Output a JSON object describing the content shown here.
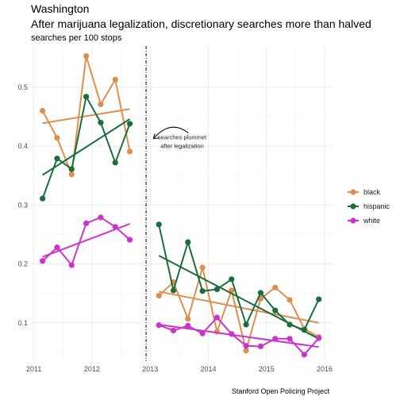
{
  "chart_data": {
    "type": "line",
    "title": "Washington",
    "subtitle": "After marijuana legalization, discretionary searches more than halved",
    "ylabel": "searches per 100 stops",
    "caption": "Stanford Open Policing Project",
    "xlim": [
      2010.95,
      2016.15
    ],
    "ylim": [
      0.035,
      0.57
    ],
    "x_ticks": [
      2011,
      2012,
      2013,
      2014,
      2015,
      2016
    ],
    "x_tick_labels": [
      "2011",
      "2012",
      "2013",
      "2014",
      "2015",
      "2016"
    ],
    "y_ticks": [
      0.1,
      0.2,
      0.3,
      0.4,
      0.5
    ],
    "y_tick_labels": [
      "0.1",
      "0.2",
      "0.3",
      "0.4",
      "0.5"
    ],
    "grid": true,
    "legend_position": "right",
    "legalization_x": 2012.93,
    "annotation": {
      "lines": [
        "searches plummet",
        "after legalization"
      ],
      "text_x": 2013.55,
      "text_y": 0.41,
      "arrow_to_x": 2013.0,
      "arrow_to_y": 0.41
    },
    "series": [
      {
        "name": "black",
        "color": "#dd8f4f",
        "pre": {
          "x": [
            2011.15,
            2011.4,
            2011.65,
            2011.9,
            2012.15,
            2012.4,
            2012.65
          ],
          "y": [
            0.46,
            0.414,
            0.352,
            0.553,
            0.471,
            0.513,
            0.391
          ]
        },
        "post": {
          "x": [
            2013.15,
            2013.4,
            2013.65,
            2013.9,
            2014.15,
            2014.4,
            2014.65,
            2014.9,
            2015.15,
            2015.4,
            2015.65,
            2015.9
          ],
          "y": [
            0.146,
            0.169,
            0.107,
            0.194,
            0.085,
            0.155,
            0.053,
            0.141,
            0.16,
            0.139,
            0.09,
            0.076
          ]
        },
        "trend_pre": [
          [
            2011.15,
            0.439
          ],
          [
            2012.65,
            0.463
          ]
        ],
        "trend_post": [
          [
            2013.15,
            0.153
          ],
          [
            2015.9,
            0.1
          ]
        ]
      },
      {
        "name": "hispanic",
        "color": "#1a6e3a",
        "pre": {
          "x": [
            2011.15,
            2011.4,
            2011.65,
            2011.9,
            2012.15,
            2012.4,
            2012.65
          ],
          "y": [
            0.311,
            0.379,
            0.361,
            0.484,
            0.44,
            0.372,
            0.438
          ]
        },
        "post": {
          "x": [
            2013.15,
            2013.4,
            2013.65,
            2013.9,
            2014.15,
            2014.4,
            2014.65,
            2014.9,
            2015.15,
            2015.4,
            2015.65,
            2015.9
          ],
          "y": [
            0.267,
            0.155,
            0.237,
            0.154,
            0.157,
            0.174,
            0.097,
            0.151,
            0.121,
            0.097,
            0.088,
            0.14
          ]
        },
        "trend_pre": [
          [
            2011.15,
            0.351
          ],
          [
            2012.65,
            0.446
          ]
        ],
        "trend_post": [
          [
            2013.15,
            0.214
          ],
          [
            2015.9,
            0.073
          ]
        ]
      },
      {
        "name": "white",
        "color": "#cc33cc",
        "pre": {
          "x": [
            2011.15,
            2011.4,
            2011.65,
            2011.9,
            2012.15,
            2012.4,
            2012.65
          ],
          "y": [
            0.205,
            0.228,
            0.198,
            0.269,
            0.279,
            0.263,
            0.241
          ]
        },
        "post": {
          "x": [
            2013.15,
            2013.4,
            2013.65,
            2013.9,
            2014.15,
            2014.4,
            2014.65,
            2014.9,
            2015.15,
            2015.4,
            2015.65,
            2015.9
          ],
          "y": [
            0.096,
            0.087,
            0.095,
            0.082,
            0.109,
            0.081,
            0.061,
            0.06,
            0.073,
            0.073,
            0.046,
            0.074
          ]
        },
        "trend_pre": [
          [
            2011.15,
            0.212
          ],
          [
            2012.65,
            0.268
          ]
        ],
        "trend_post": [
          [
            2013.15,
            0.097
          ],
          [
            2015.9,
            0.059
          ]
        ]
      }
    ]
  }
}
